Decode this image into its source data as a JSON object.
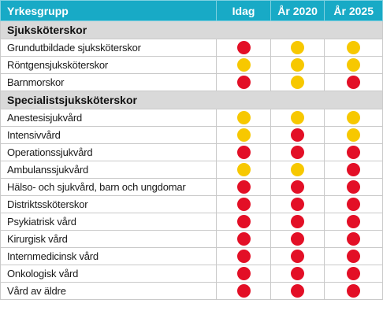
{
  "header": {
    "col_group": "Yrkesgrupp",
    "col_now": "Idag",
    "col_2020": "År 2020",
    "col_2025": "År 2025"
  },
  "colors": {
    "red": "#e30f26",
    "yellow": "#f7c800",
    "header_bg": "#18aac6",
    "section_bg": "#d9d9d9"
  },
  "sections": [
    {
      "title": "Sjuksköterskor",
      "rows": [
        {
          "name": "Grundutbildade sjuksköterskor",
          "values": [
            "red",
            "yellow",
            "yellow"
          ]
        },
        {
          "name": "Röntgensjuksköterskor",
          "values": [
            "yellow",
            "yellow",
            "yellow"
          ]
        },
        {
          "name": "Barnmorskor",
          "values": [
            "red",
            "yellow",
            "red"
          ]
        }
      ]
    },
    {
      "title": "Specialistsjuksköterskor",
      "rows": [
        {
          "name": "Anestesisjukvård",
          "values": [
            "yellow",
            "yellow",
            "yellow"
          ]
        },
        {
          "name": "Intensivvård",
          "values": [
            "yellow",
            "red",
            "yellow"
          ]
        },
        {
          "name": "Operationssjukvård",
          "values": [
            "red",
            "red",
            "red"
          ]
        },
        {
          "name": "Ambulanssjukvård",
          "values": [
            "yellow",
            "yellow",
            "red"
          ]
        },
        {
          "name": "Hälso- och sjukvård, barn och ungdomar",
          "values": [
            "red",
            "red",
            "red"
          ]
        },
        {
          "name": "Distriktssköterskor",
          "values": [
            "red",
            "red",
            "red"
          ]
        },
        {
          "name": "Psykiatrisk vård",
          "values": [
            "red",
            "red",
            "red"
          ]
        },
        {
          "name": "Kirurgisk vård",
          "values": [
            "red",
            "red",
            "red"
          ]
        },
        {
          "name": "Internmedicinsk vård",
          "values": [
            "red",
            "red",
            "red"
          ]
        },
        {
          "name": "Onkologisk vård",
          "values": [
            "red",
            "red",
            "red"
          ]
        },
        {
          "name": "Vård av äldre",
          "values": [
            "red",
            "red",
            "red"
          ]
        }
      ]
    }
  ]
}
